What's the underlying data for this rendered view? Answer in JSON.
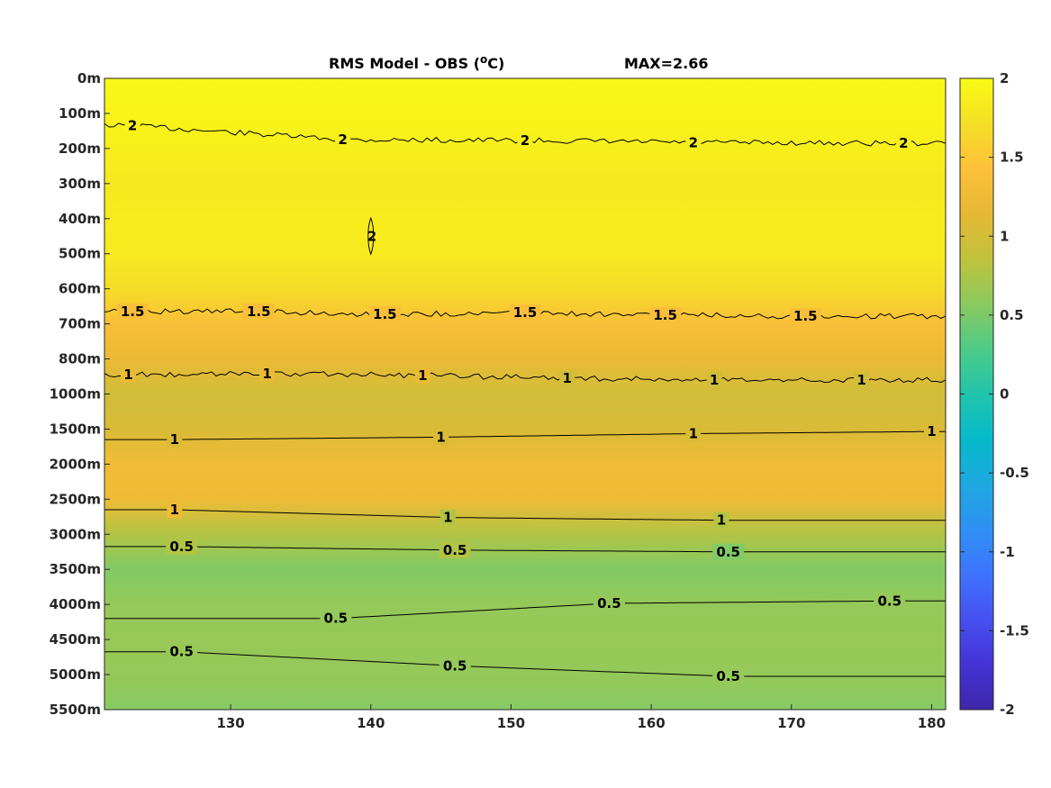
{
  "chart_data": {
    "type": "heatmap",
    "title": "RMS Model - OBS (",
    "title_unit": "o",
    "title_unit_suffix": "C)",
    "annotation": "MAX=2.66",
    "x": {
      "ticks": [
        130,
        140,
        150,
        160,
        170,
        180
      ],
      "range": [
        121,
        181
      ]
    },
    "y": {
      "tick_labels": [
        "0m",
        "100m",
        "200m",
        "300m",
        "400m",
        "500m",
        "600m",
        "700m",
        "800m",
        "1000m",
        "1500m",
        "2000m",
        "2500m",
        "3000m",
        "3500m",
        "4000m",
        "4500m",
        "5000m",
        "5500m"
      ],
      "reversed": true
    },
    "colorbar": {
      "range": [
        -2,
        2
      ],
      "ticks": [
        2,
        1.5,
        1,
        0.5,
        0,
        -0.5,
        -1,
        -1.5,
        -2
      ],
      "tick_labels": [
        "2",
        "1.5",
        "1",
        "0.5",
        "0",
        "-0.5",
        "-1",
        "-1.5",
        "-2"
      ],
      "colormap": "parula",
      "stops": [
        "#3e26a8",
        "#4433d5",
        "#4750f0",
        "#3e74fe",
        "#2f90f3",
        "#1fa9e1",
        "#06baca",
        "#22c4ac",
        "#4ecb88",
        "#8cca5f",
        "#c0c23c",
        "#e6b834",
        "#fdc03a",
        "#f5df26",
        "#f9fb14"
      ]
    },
    "depth_profile": [
      {
        "depth": "0m",
        "value": 1.96
      },
      {
        "depth": "100m",
        "value": 1.93
      },
      {
        "depth": "200m",
        "value": 1.88
      },
      {
        "depth": "300m",
        "value": 1.82
      },
      {
        "depth": "400m",
        "value": 1.85
      },
      {
        "depth": "500m",
        "value": 1.83
      },
      {
        "depth": "600m",
        "value": 1.7
      },
      {
        "depth": "700m",
        "value": 1.38
      },
      {
        "depth": "800m",
        "value": 1.2
      },
      {
        "depth": "1000m",
        "value": 0.98
      },
      {
        "depth": "1500m",
        "value": 1.05
      },
      {
        "depth": "2000m",
        "value": 1.28
      },
      {
        "depth": "2500m",
        "value": 1.25
      },
      {
        "depth": "3000m",
        "value": 0.78
      },
      {
        "depth": "3500m",
        "value": 0.52
      },
      {
        "depth": "4000m",
        "value": 0.62
      },
      {
        "depth": "4500m",
        "value": 0.63
      },
      {
        "depth": "5000m",
        "value": 0.62
      },
      {
        "depth": "5500m",
        "value": 0.55
      }
    ],
    "contours": [
      {
        "level": "2",
        "labels": [
          {
            "x": 123,
            "level_index": 1.35
          },
          {
            "x": 138,
            "level_index": 1.75
          },
          {
            "x": 151,
            "level_index": 1.77
          },
          {
            "x": 163,
            "level_index": 1.83
          },
          {
            "x": 178,
            "level_index": 1.85
          }
        ]
      },
      {
        "level": "2",
        "labels": [
          {
            "x": 140,
            "level_index": 4.5
          }
        ]
      },
      {
        "level": "1.5",
        "labels": [
          {
            "x": 123,
            "level_index": 6.65
          },
          {
            "x": 132,
            "level_index": 6.65
          },
          {
            "x": 141,
            "level_index": 6.73
          },
          {
            "x": 151,
            "level_index": 6.68
          },
          {
            "x": 161,
            "level_index": 6.75
          },
          {
            "x": 171,
            "level_index": 6.78
          }
        ]
      },
      {
        "level": "1",
        "labels": [
          {
            "x": 122.7,
            "level_index": 8.45
          },
          {
            "x": 132.6,
            "level_index": 8.42
          },
          {
            "x": 143.7,
            "level_index": 8.47
          },
          {
            "x": 154,
            "level_index": 8.55
          },
          {
            "x": 164.5,
            "level_index": 8.6
          },
          {
            "x": 175,
            "level_index": 8.6
          }
        ]
      },
      {
        "level": "1",
        "labels": [
          {
            "x": 126,
            "level_index": 10.3
          },
          {
            "x": 145,
            "level_index": 10.23
          },
          {
            "x": 163,
            "level_index": 10.13
          },
          {
            "x": 180,
            "level_index": 10.07
          }
        ]
      },
      {
        "level": "1",
        "labels": [
          {
            "x": 126,
            "level_index": 12.3
          },
          {
            "x": 145.5,
            "level_index": 12.52
          },
          {
            "x": 165,
            "level_index": 12.6
          }
        ]
      },
      {
        "level": "0.5",
        "labels": [
          {
            "x": 126.5,
            "level_index": 13.35
          },
          {
            "x": 146,
            "level_index": 13.45
          },
          {
            "x": 165.5,
            "level_index": 13.5
          }
        ]
      },
      {
        "level": "0.5",
        "labels": [
          {
            "x": 137.5,
            "level_index": 15.4
          },
          {
            "x": 157,
            "level_index": 14.97
          },
          {
            "x": 177,
            "level_index": 14.9
          }
        ]
      },
      {
        "level": "0.5",
        "labels": [
          {
            "x": 126.5,
            "level_index": 16.35
          },
          {
            "x": 146,
            "level_index": 16.75
          },
          {
            "x": 165.5,
            "level_index": 17.05
          }
        ]
      }
    ]
  }
}
